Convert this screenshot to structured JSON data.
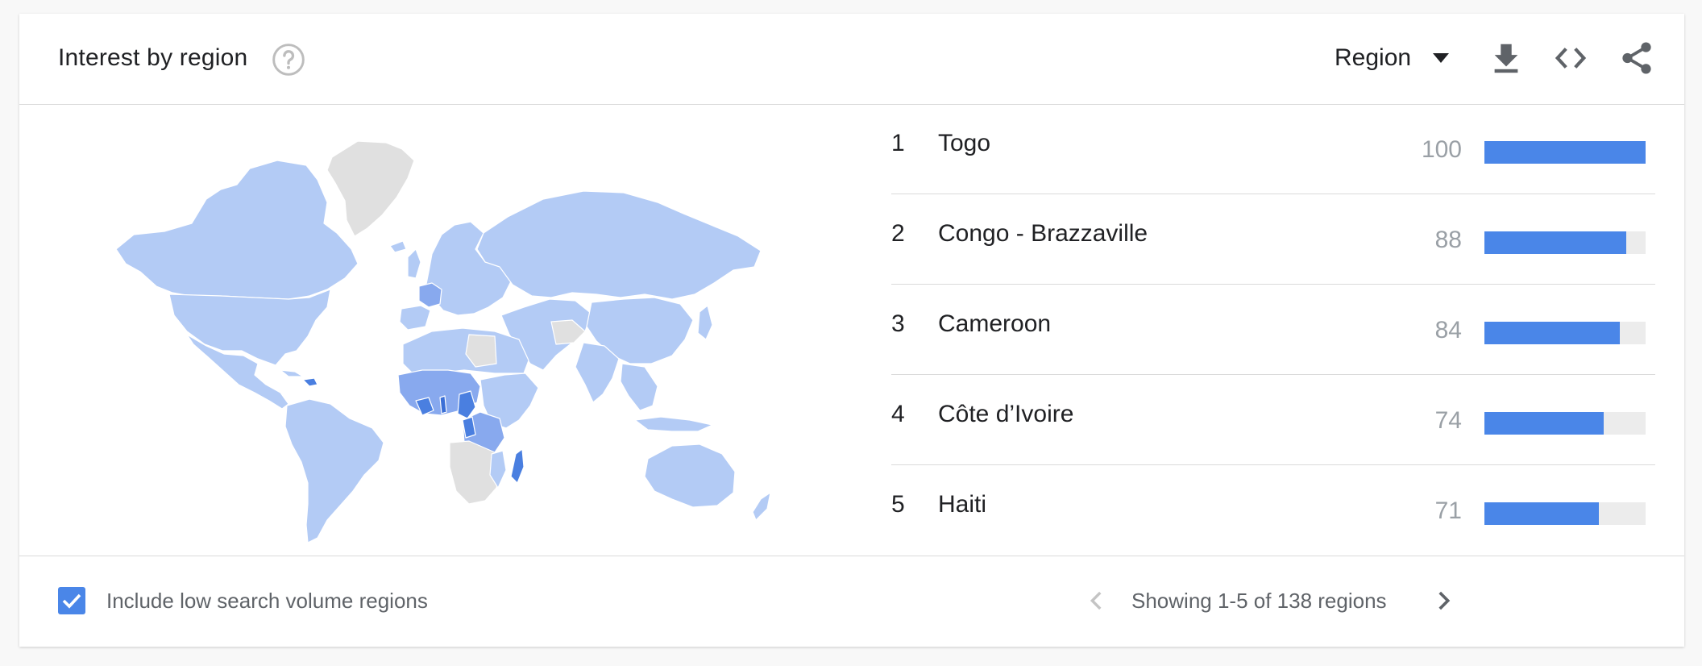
{
  "header": {
    "title": "Interest by region",
    "help_icon": "help-circle-icon",
    "region_select": {
      "label": "Region",
      "icon": "caret-down-icon"
    },
    "tools": [
      "download-icon",
      "embed-code-icon",
      "share-icon"
    ]
  },
  "map": {
    "icon": "world-choropleth-map",
    "colors": {
      "low": "#b3cbf5",
      "mid": "#88a9ee",
      "high": "#4a7fe0",
      "none": "#e0e0e0"
    }
  },
  "ranking": [
    {
      "rank": "1",
      "name": "Togo",
      "value": "100",
      "fraction": 1.0
    },
    {
      "rank": "2",
      "name": "Congo - Brazzaville",
      "value": "88",
      "fraction": 0.88
    },
    {
      "rank": "3",
      "name": "Cameroon",
      "value": "84",
      "fraction": 0.84
    },
    {
      "rank": "4",
      "name": "Côte d’Ivoire",
      "value": "74",
      "fraction": 0.74
    },
    {
      "rank": "5",
      "name": "Haiti",
      "value": "71",
      "fraction": 0.71
    }
  ],
  "footer": {
    "checkbox_checked": true,
    "checkbox_label": "Include low search volume regions",
    "pager_text": "Showing 1-5 of 138 regions"
  },
  "colors": {
    "accent": "#4a86e8",
    "track": "#ececec",
    "divider": "#dadada"
  }
}
